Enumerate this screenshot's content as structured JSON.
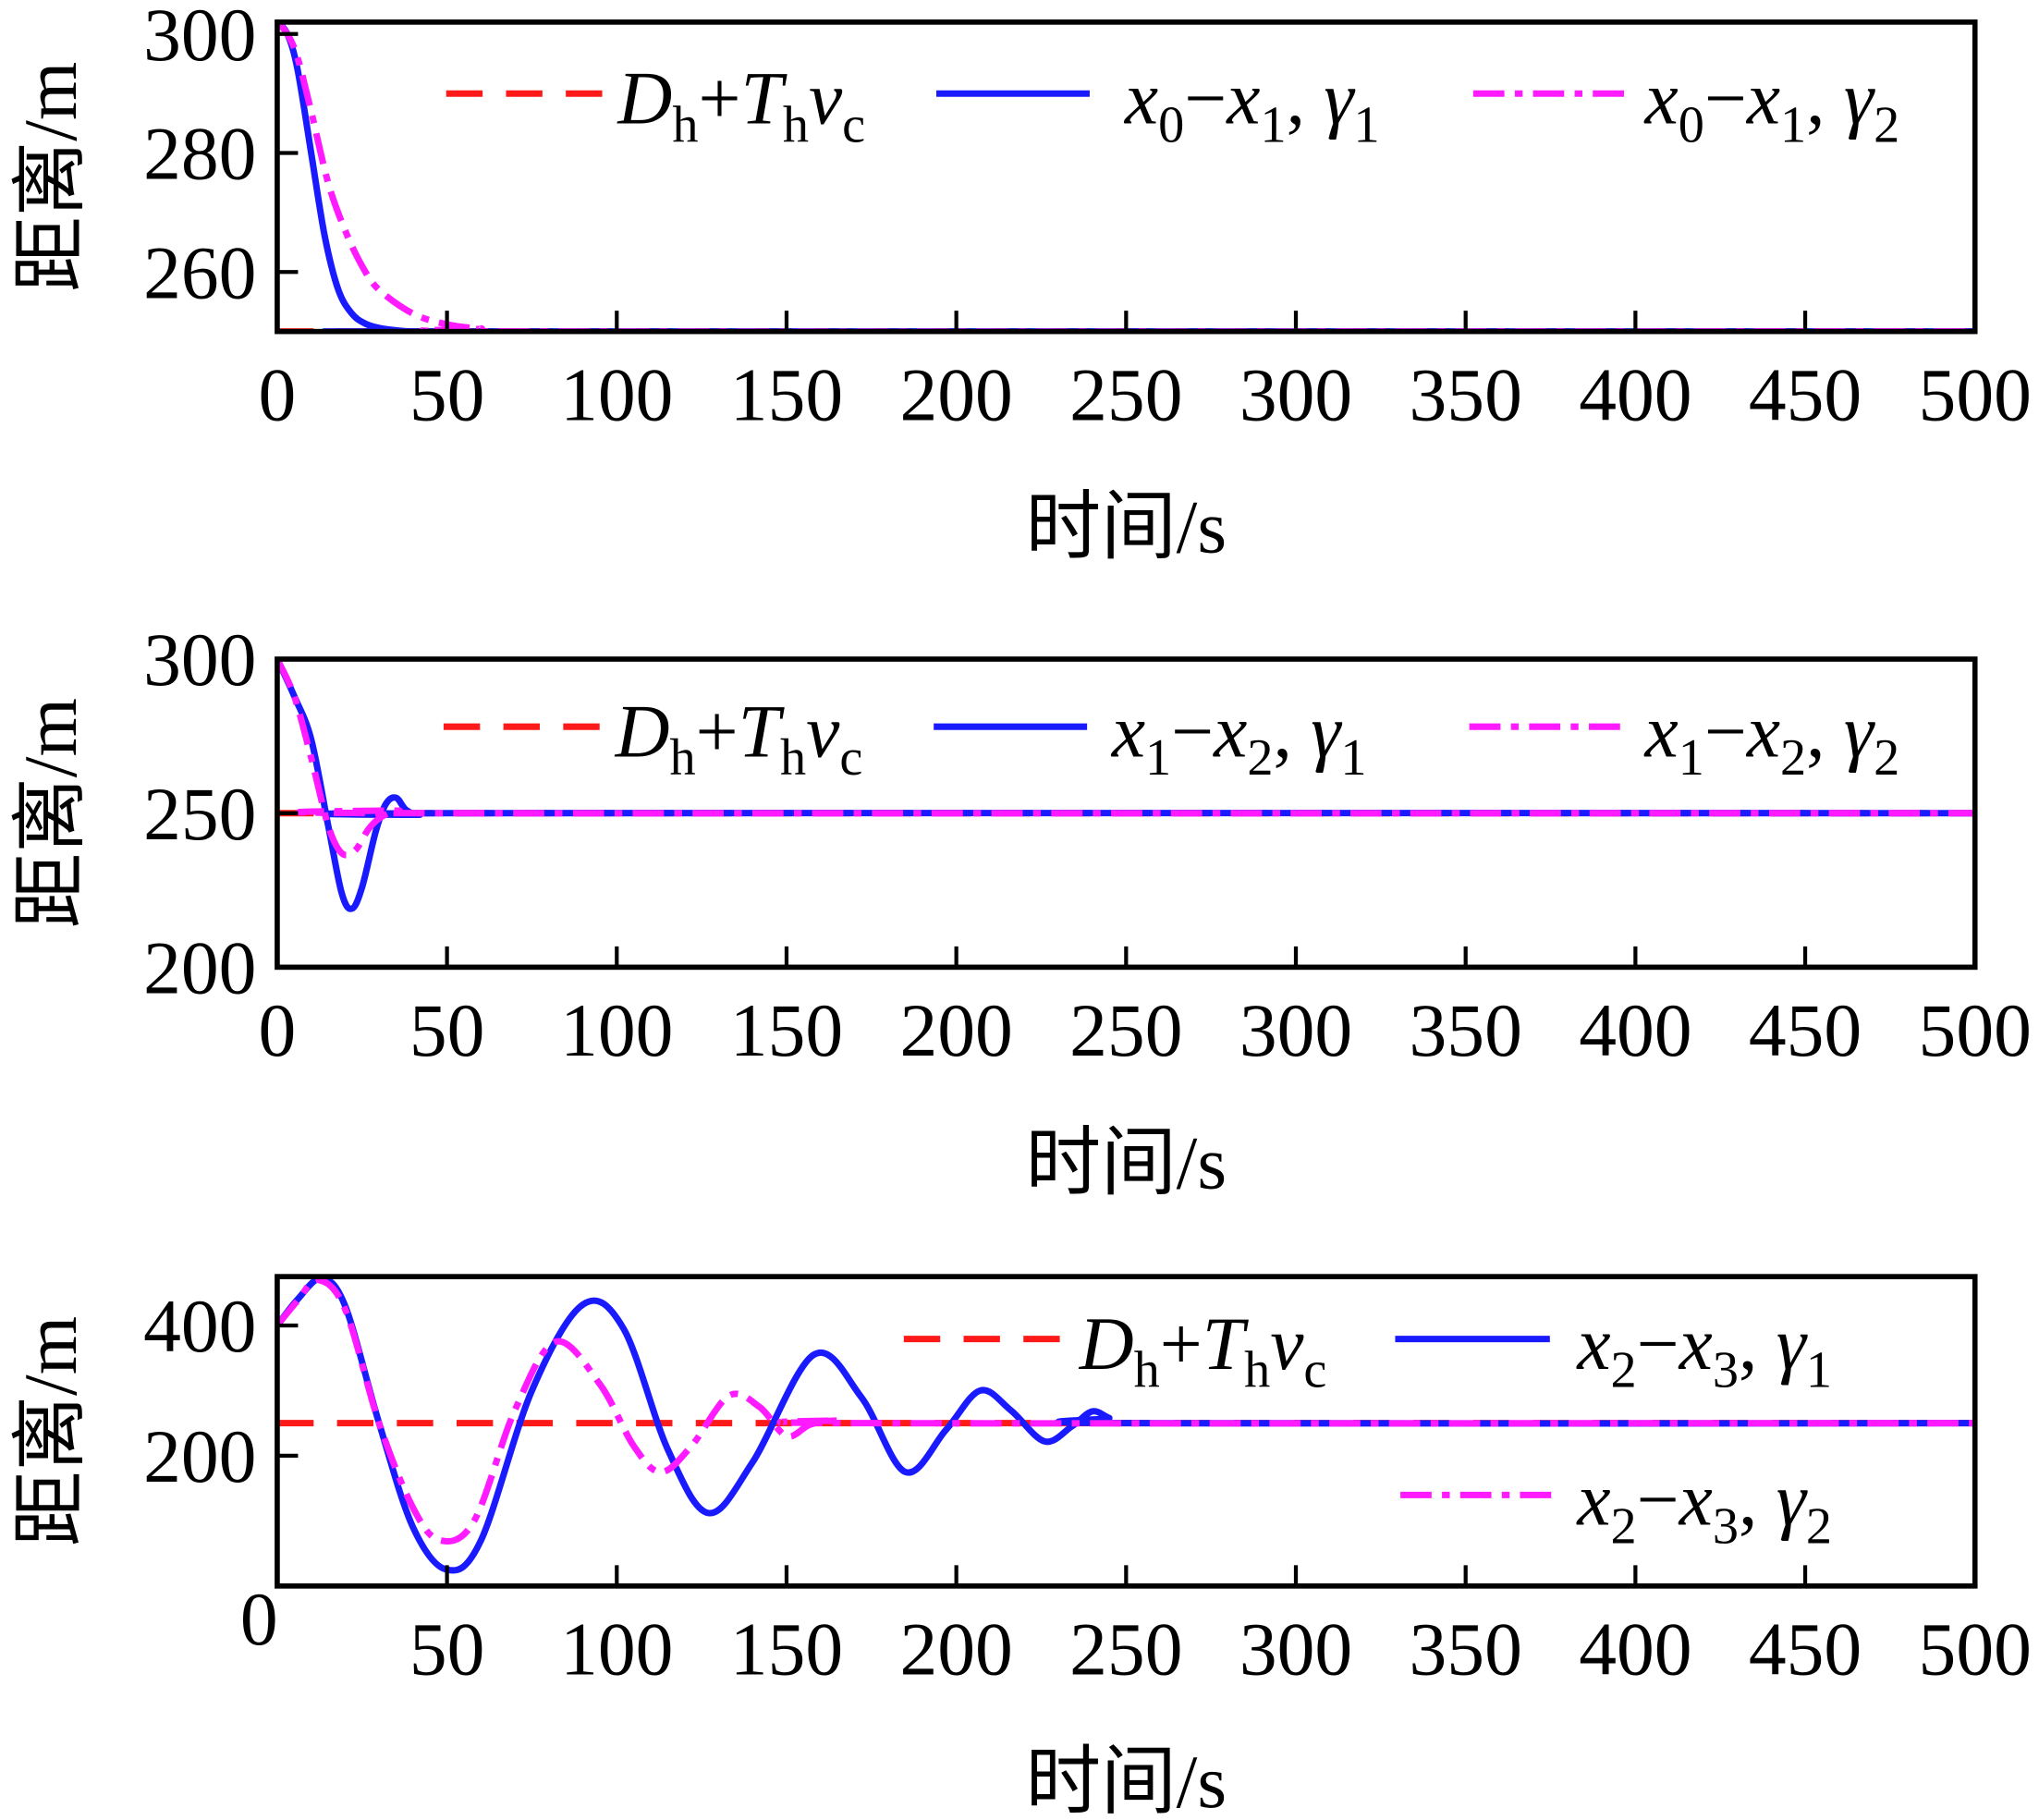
{
  "colors": {
    "reference": "#ff1a1a",
    "gamma1": "#1a1aff",
    "gamma2": "#ff1aff",
    "axis": "#000000"
  },
  "chart_data": [
    {
      "type": "line",
      "xlabel": "时间/s",
      "ylabel": "距离/m",
      "xlim": [
        0,
        500
      ],
      "ylim": [
        250,
        302
      ],
      "xticks": [
        0,
        50,
        100,
        150,
        200,
        250,
        300,
        350,
        400,
        450,
        500
      ],
      "xtick_labels": [
        "0",
        "50",
        "100",
        "150",
        "200",
        "250",
        "300",
        "350",
        "400",
        "450",
        "500"
      ],
      "yticks": [
        260,
        280,
        300
      ],
      "ytick_labels": [
        "260",
        "280",
        "300"
      ],
      "legend_placement": "top-right",
      "reference": {
        "name": "Dh+Thvc",
        "value": 250,
        "label": [
          {
            "t": "D",
            "i": true
          },
          {
            "t": "h",
            "sub": true
          },
          {
            "t": "+"
          },
          {
            "t": "T",
            "i": true
          },
          {
            "t": "h",
            "sub": true
          },
          {
            "t": "v",
            "i": true
          },
          {
            "t": "c",
            "sub": true
          }
        ]
      },
      "series": [
        {
          "name": "x0−x1, γ1",
          "label": [
            {
              "t": "x",
              "i": true
            },
            {
              "t": "0",
              "sub": true
            },
            {
              "t": "−"
            },
            {
              "t": "x",
              "i": true
            },
            {
              "t": "1",
              "sub": true
            },
            {
              "t": ", "
            },
            {
              "t": "γ",
              "i": true
            },
            {
              "t": "1",
              "sub": true
            }
          ],
          "x": [
            0,
            3,
            6,
            10,
            14,
            18,
            22,
            26,
            30,
            35,
            40,
            50,
            500
          ],
          "y": [
            302,
            300,
            294,
            280,
            266,
            257,
            253,
            251.3,
            250.6,
            250.2,
            250,
            250,
            250
          ]
        },
        {
          "name": "x0−x1, γ2",
          "label": [
            {
              "t": "x",
              "i": true
            },
            {
              "t": "0",
              "sub": true
            },
            {
              "t": "−"
            },
            {
              "t": "x",
              "i": true
            },
            {
              "t": "1",
              "sub": true
            },
            {
              "t": ", "
            },
            {
              "t": "γ",
              "i": true
            },
            {
              "t": "2",
              "sub": true
            }
          ],
          "x": [
            0,
            3,
            6,
            10,
            15,
            20,
            25,
            30,
            40,
            50,
            60,
            80,
            500
          ],
          "y": [
            302,
            300,
            296,
            287,
            275,
            267,
            261,
            257,
            253,
            251.2,
            250.5,
            250,
            250
          ]
        }
      ]
    },
    {
      "type": "line",
      "xlabel": "时间/s",
      "ylabel": "距离/m",
      "xlim": [
        0,
        500
      ],
      "ylim": [
        200,
        300
      ],
      "xticks": [
        0,
        50,
        100,
        150,
        200,
        250,
        300,
        350,
        400,
        450,
        500
      ],
      "xtick_labels": [
        "0",
        "50",
        "100",
        "150",
        "200",
        "250",
        "300",
        "350",
        "400",
        "450",
        "500"
      ],
      "yticks": [
        200,
        250,
        300
      ],
      "ytick_labels": [
        "200",
        "250",
        "300"
      ],
      "legend_placement": "top-right",
      "reference": {
        "name": "Dh+Thvc",
        "value": 250,
        "label": [
          {
            "t": "D",
            "i": true
          },
          {
            "t": "h",
            "sub": true
          },
          {
            "t": "+"
          },
          {
            "t": "T",
            "i": true
          },
          {
            "t": "h",
            "sub": true
          },
          {
            "t": "v",
            "i": true
          },
          {
            "t": "c",
            "sub": true
          }
        ]
      },
      "series": [
        {
          "name": "x1−x2, γ1",
          "label": [
            {
              "t": "x",
              "i": true
            },
            {
              "t": "1",
              "sub": true
            },
            {
              "t": "−"
            },
            {
              "t": "x",
              "i": true
            },
            {
              "t": "2",
              "sub": true
            },
            {
              "t": ", "
            },
            {
              "t": "γ",
              "i": true
            },
            {
              "t": "1",
              "sub": true
            }
          ],
          "x": [
            0,
            5,
            10,
            15,
            19,
            22,
            25,
            29,
            32,
            35,
            38,
            42,
            50,
            500
          ],
          "y": [
            300,
            288,
            274,
            246,
            224,
            219,
            226,
            244,
            253,
            255,
            251,
            249.5,
            250,
            250
          ]
        },
        {
          "name": "x1−x2, γ2",
          "label": [
            {
              "t": "x",
              "i": true
            },
            {
              "t": "1",
              "sub": true
            },
            {
              "t": "−"
            },
            {
              "t": "x",
              "i": true
            },
            {
              "t": "2",
              "sub": true
            },
            {
              "t": ", "
            },
            {
              "t": "γ",
              "i": true
            },
            {
              "t": "2",
              "sub": true
            }
          ],
          "x": [
            0,
            5,
            10,
            15,
            19,
            23,
            27,
            31,
            36,
            42,
            500
          ],
          "y": [
            300,
            288,
            268,
            246,
            237,
            238,
            245,
            249,
            250.8,
            250,
            250
          ]
        }
      ]
    },
    {
      "type": "line",
      "xlabel": "时间/s",
      "ylabel": "距离/m",
      "xlim": [
        0,
        500
      ],
      "ylim": [
        0,
        475
      ],
      "xticks": [
        0,
        50,
        100,
        150,
        200,
        250,
        300,
        350,
        400,
        450,
        500
      ],
      "xtick_labels": [
        "0",
        "50",
        "100",
        "150",
        "200",
        "250",
        "300",
        "350",
        "400",
        "450",
        "500"
      ],
      "yticks": [
        200,
        400
      ],
      "ytick_labels": [
        "200",
        "400"
      ],
      "legend_placement": "top-right",
      "reference": {
        "name": "Dh+Thvc",
        "value": 250,
        "label": [
          {
            "t": "D",
            "i": true
          },
          {
            "t": "h",
            "sub": true
          },
          {
            "t": "+"
          },
          {
            "t": "T",
            "i": true
          },
          {
            "t": "h",
            "sub": true
          },
          {
            "t": "v",
            "i": true
          },
          {
            "t": "c",
            "sub": true
          }
        ]
      },
      "series": [
        {
          "name": "x2−x3, γ1",
          "label": [
            {
              "t": "x",
              "i": true
            },
            {
              "t": "2",
              "sub": true
            },
            {
              "t": "−"
            },
            {
              "t": "x",
              "i": true
            },
            {
              "t": "3",
              "sub": true
            },
            {
              "t": ", "
            },
            {
              "t": "γ",
              "i": true
            },
            {
              "t": "1",
              "sub": true
            }
          ],
          "x": [
            0,
            6,
            13,
            20,
            30,
            40,
            50,
            60,
            75,
            90,
            102,
            115,
            127,
            140,
            158,
            172,
            185,
            197,
            207,
            216,
            226,
            234,
            240,
            245,
            250,
            500
          ],
          "y": [
            400,
            440,
            472,
            430,
            250,
            90,
            25,
            70,
            300,
            432,
            395,
            210,
            112,
            190,
            355,
            290,
            175,
            240,
            300,
            270,
            222,
            245,
            268,
            258,
            250,
            250
          ]
        },
        {
          "name": "x2−x3, γ2",
          "label": [
            {
              "t": "x",
              "i": true
            },
            {
              "t": "2",
              "sub": true
            },
            {
              "t": "−"
            },
            {
              "t": "x",
              "i": true
            },
            {
              "t": "3",
              "sub": true
            },
            {
              "t": ", "
            },
            {
              "t": "γ",
              "i": true
            },
            {
              "t": "2",
              "sub": true
            }
          ],
          "x": [
            0,
            6,
            12,
            20,
            30,
            40,
            48,
            58,
            70,
            82,
            95,
            105,
            113,
            122,
            133,
            142,
            150,
            157,
            165,
            175,
            500
          ],
          "y": [
            400,
            438,
            470,
            425,
            250,
            120,
            70,
            100,
            270,
            375,
            310,
            215,
            175,
            215,
            292,
            275,
            230,
            248,
            254,
            250,
            250
          ]
        }
      ]
    }
  ]
}
